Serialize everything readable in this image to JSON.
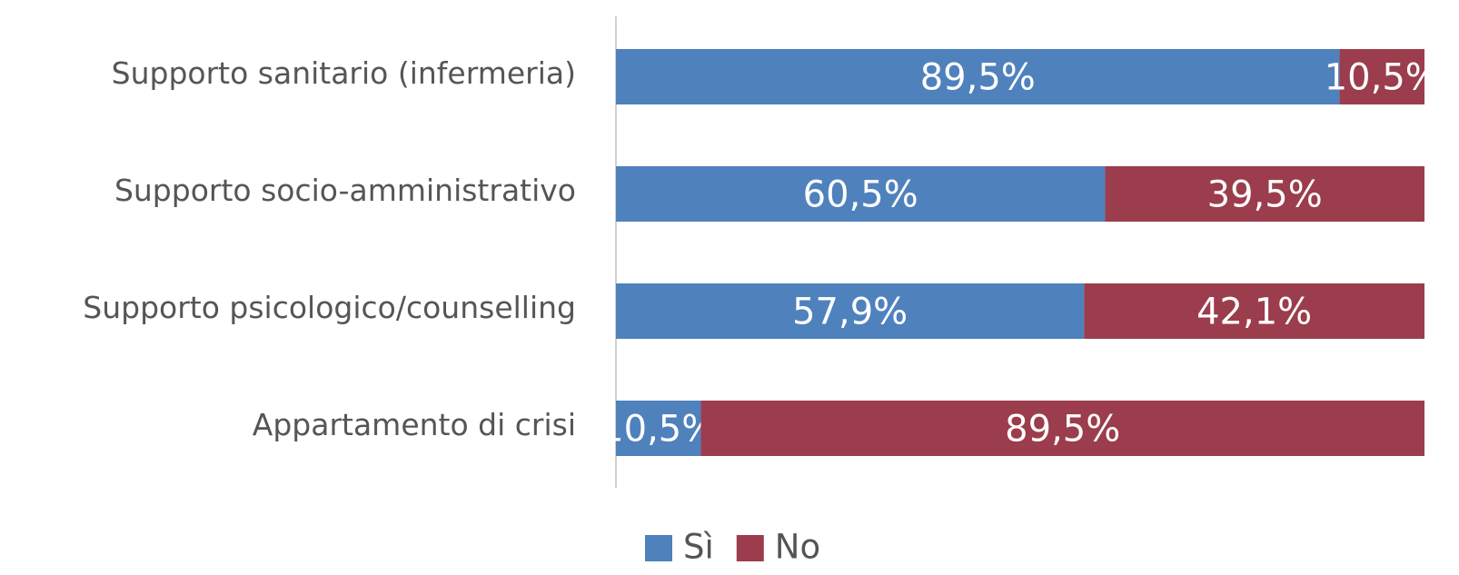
{
  "chart_data": {
    "type": "stacked_barh",
    "categories": [
      "Supporto sanitario (infermeria)",
      "Supporto socio-amministrativo",
      "Supporto psicologico/counselling",
      "Appartamento di crisi"
    ],
    "series": [
      {
        "name": "Sì",
        "color": "#4f81bd",
        "values": [
          89.5,
          60.5,
          57.9,
          10.5
        ],
        "value_labels": [
          "89,5%",
          "60,5%",
          "57,9%",
          "10,5%"
        ]
      },
      {
        "name": "No",
        "color": "#9b3d4c",
        "values": [
          10.5,
          39.5,
          42.1,
          89.5
        ],
        "value_labels": [
          "10,5%",
          "39,5%",
          "42,1%",
          "89,5%"
        ]
      }
    ],
    "xlim": [
      0,
      100
    ],
    "legend": "bottom"
  }
}
